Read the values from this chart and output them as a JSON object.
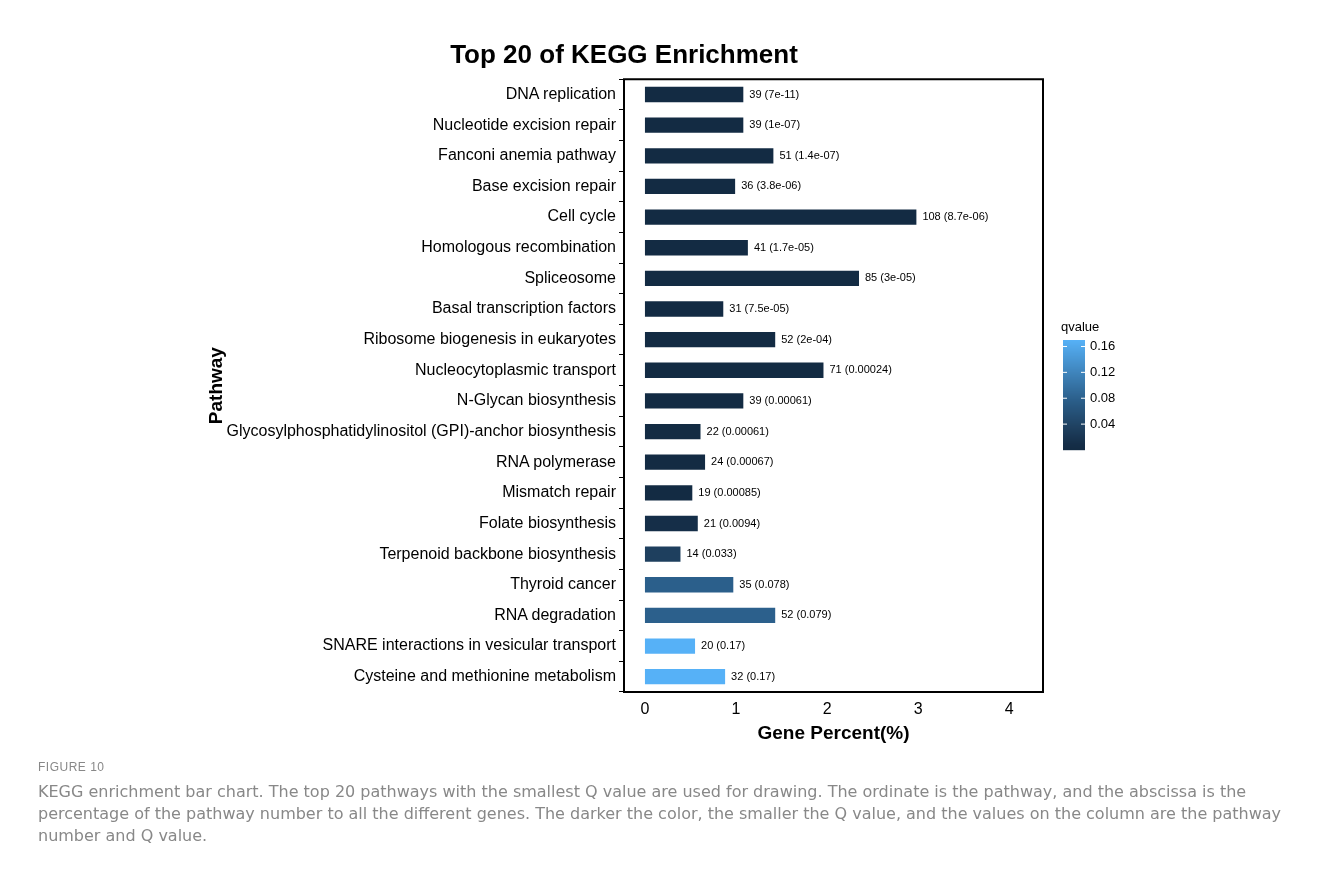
{
  "chart_data": {
    "type": "bar",
    "orientation": "horizontal",
    "title": "Top 20 of KEGG Enrichment",
    "xlabel": "Gene Percent(%)",
    "ylabel": "Pathway",
    "clabel": "qvalue",
    "categories": [
      "DNA replication",
      "Nucleotide excision repair",
      "Fanconi anemia pathway",
      "Base excision repair",
      "Cell cycle",
      "Homologous recombination",
      "Spliceosome",
      "Basal transcription factors",
      "Ribosome biogenesis in eukaryotes",
      "Nucleocytoplasmic transport",
      "N-Glycan biosynthesis",
      "Glycosylphosphatidylinositol (GPI)-anchor biosynthesis",
      "RNA polymerase",
      "Mismatch repair",
      "Folate biosynthesis",
      "Terpenoid backbone biosynthesis",
      "Thyroid cancer",
      "RNA degradation",
      "SNARE interactions in vesicular transport",
      "Cysteine and methionine metabolism"
    ],
    "values": [
      1.08,
      1.08,
      1.41,
      0.99,
      2.98,
      1.13,
      2.35,
      0.86,
      1.43,
      1.96,
      1.08,
      0.61,
      0.66,
      0.52,
      0.58,
      0.39,
      0.97,
      1.43,
      0.55,
      0.88
    ],
    "cvalues": [
      7e-11,
      1e-07,
      1.4e-07,
      3.8e-06,
      8.7e-06,
      1.7e-05,
      3e-05,
      7.5e-05,
      0.0002,
      0.00024,
      0.00061,
      0.00061,
      0.00067,
      0.00085,
      0.0094,
      0.033,
      0.078,
      0.079,
      0.17,
      0.17
    ],
    "colors": [
      "#132b43",
      "#132b43",
      "#132b43",
      "#132b43",
      "#132b43",
      "#132b43",
      "#132b43",
      "#132b43",
      "#132b43",
      "#132b43",
      "#132b43",
      "#132b43",
      "#132b43",
      "#132b43",
      "#152e48",
      "#1e3f5e",
      "#2b5f8b",
      "#2c608c",
      "#56b1f7",
      "#56b1f7"
    ],
    "clim": [
      0,
      0.17
    ],
    "cticks": [
      0.04,
      0.08,
      0.12,
      0.16
    ],
    "xlim": [
      -0.23,
      4.37
    ],
    "xticks": [
      0,
      1,
      2,
      3,
      4
    ],
    "grid": false,
    "legend": false,
    "annotations": [
      "FIGURE 10",
      "KEGG enrichment bar chart. The top 20 pathways with the smallest Q value are used for drawing. The ordinate is the pathway, and the abscissa is the percentage of the pathway number to all the different genes. The darker the color, the smaller the Q value, and the values on the column are the pathway number and Q value.",
      {
        "text": "39 (7e-11)",
        "x": 1.08,
        "y": "DNA replication"
      },
      {
        "text": "39 (1e-07)",
        "x": 1.08,
        "y": "Nucleotide excision repair"
      },
      {
        "text": "51 (1.4e-07)",
        "x": 1.41,
        "y": "Fanconi anemia pathway"
      },
      {
        "text": "36 (3.8e-06)",
        "x": 0.99,
        "y": "Base excision repair"
      },
      {
        "text": "108 (8.7e-06)",
        "x": 2.98,
        "y": "Cell cycle"
      },
      {
        "text": "41 (1.7e-05)",
        "x": 1.13,
        "y": "Homologous recombination"
      },
      {
        "text": "85 (3e-05)",
        "x": 2.35,
        "y": "Spliceosome"
      },
      {
        "text": "31 (7.5e-05)",
        "x": 0.86,
        "y": "Basal transcription factors"
      },
      {
        "text": "52 (2e-04)",
        "x": 1.43,
        "y": "Ribosome biogenesis in eukaryotes"
      },
      {
        "text": "71 (0.00024)",
        "x": 1.96,
        "y": "Nucleocytoplasmic transport"
      },
      {
        "text": "39 (0.00061)",
        "x": 1.08,
        "y": "N-Glycan biosynthesis"
      },
      {
        "text": "22 (0.00061)",
        "x": 0.61,
        "y": "Glycosylphosphatidylinositol (GPI)-anchor biosynthesis"
      },
      {
        "text": "24 (0.00067)",
        "x": 0.66,
        "y": "RNA polymerase"
      },
      {
        "text": "19 (0.00085)",
        "x": 0.52,
        "y": "Mismatch repair"
      },
      {
        "text": "21 (0.0094)",
        "x": 0.58,
        "y": "Folate biosynthesis"
      },
      {
        "text": "14 (0.033)",
        "x": 0.39,
        "y": "Terpenoid backbone biosynthesis"
      },
      {
        "text": "35 (0.078)",
        "x": 0.97,
        "y": "Thyroid cancer"
      },
      {
        "text": "52 (0.079)",
        "x": 1.43,
        "y": "RNA degradation"
      },
      {
        "text": "20 (0.17)",
        "x": 0.55,
        "y": "SNARE interactions in vesicular transport"
      },
      {
        "text": "32 (0.17)",
        "x": 0.88,
        "y": "Cysteine and methionine metabolism"
      }
    ]
  }
}
